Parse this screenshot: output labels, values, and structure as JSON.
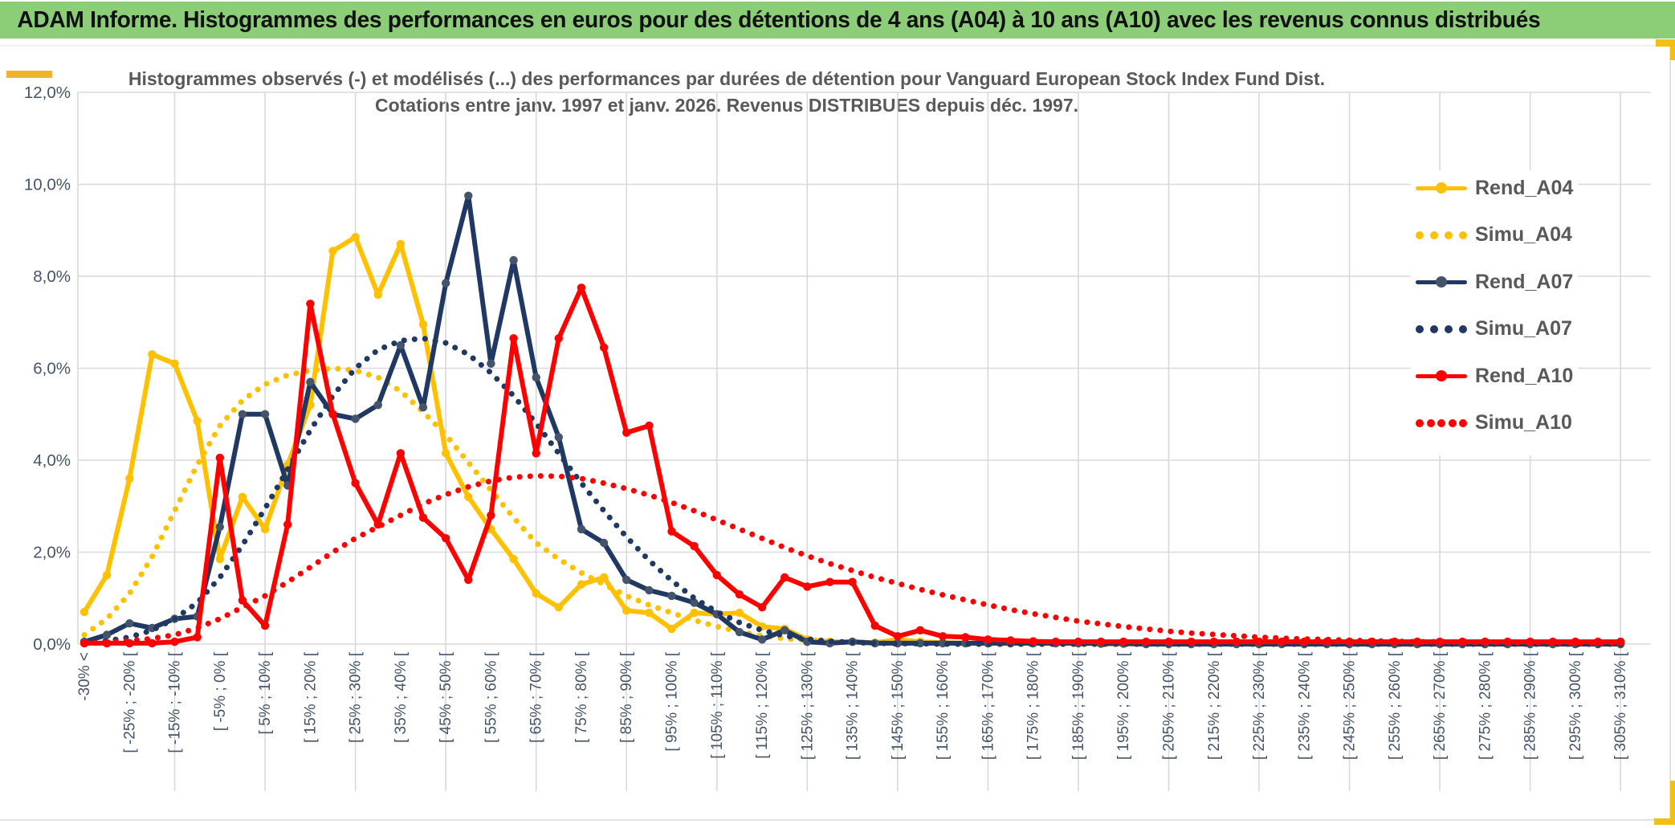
{
  "banner": {
    "text": "ADAM Informe. Histogrammes des performances en euros pour des détentions de 4 ans (A04) à 10 ans (A10) avec les revenus connus distribués"
  },
  "chart": {
    "title_line1": "Histogrammes observés (-) et modélisés (...) des performances par durées de détention pour Vanguard European Stock Index Fund Dist.",
    "title_line2": "Cotations entre janv. 1997 et janv. 2026. Revenus DISTRIBUES depuis déc. 1997.",
    "y_ticks": [
      "12,0%",
      "10,0%",
      "8,0%",
      "6,0%",
      "4,0%",
      "2,0%",
      "0,0%"
    ]
  },
  "chart_data": {
    "type": "line",
    "title": "Histogrammes observés (-) et modélisés (...) des performances par durées de détention pour Vanguard European Stock Index Fund Dist.",
    "subtitle": "Cotations entre janv. 1997 et janv. 2026. Revenus DISTRIBUES depuis déc. 1997.",
    "ylabel": "",
    "xlabel": "",
    "ylim": [
      0,
      12
    ],
    "grid": true,
    "legend_position": "right",
    "bin_width_pct": 5,
    "n_bins": 69,
    "x_labels_on_even_bins": [
      "-30% <",
      "[ -25% ; -20% [",
      "[ -15% ; -10% [",
      "[ -5% ; 0% [",
      "[ 5% ; 10% [",
      "[ 15% ; 20% [",
      "[ 25% ; 30% [",
      "[ 35% ; 40% [",
      "[ 45% ; 50% [",
      "[ 55% ; 60% [",
      "[ 65% ; 70% [",
      "[ 75% ; 80% [",
      "[ 85% ; 90% [",
      "[ 95% ; 100% [",
      "[ 105% ; 110% [",
      "[ 115% ; 120% [",
      "[ 125% ; 130% [",
      "[ 135% ; 140% [",
      "[ 145% ; 150% [",
      "[ 155% ; 160% [",
      "[ 165% ; 170% [",
      "[ 175% ; 180% [",
      "[ 185% ; 190% [",
      "[ 195% ; 200% [",
      "[ 205% ; 210% [",
      "[ 215% ; 220% [",
      "[ 225% ; 230% [",
      "[ 235% ; 240% [",
      "[ 245% ; 250% [",
      "[ 255% ; 260% [",
      "[ 265% ; 270% [",
      "[ 275% ; 280% [",
      "[ 285% ; 290% [",
      "[ 295% ; 300% [",
      "[ 305% ; 310% ["
    ],
    "series": [
      {
        "name": "Rend_A04",
        "color": "#FFC000",
        "marker_color": "#FFC000",
        "style": "solid",
        "values": [
          0.7,
          1.5,
          3.6,
          6.3,
          6.1,
          4.85,
          1.85,
          3.2,
          2.5,
          3.9,
          5.2,
          8.55,
          8.85,
          7.6,
          8.7,
          6.95,
          4.15,
          3.2,
          2.5,
          1.85,
          1.1,
          0.8,
          1.3,
          1.45,
          0.73,
          0.68,
          0.33,
          0.68,
          0.65,
          0.68,
          0.38,
          0.33,
          0.1,
          0.05,
          0.05,
          0.03,
          0.1,
          0.05,
          0.03,
          0.02,
          0.02,
          0.02,
          0.02,
          0.02,
          0.02,
          0.01,
          0.01,
          0,
          0,
          0,
          0,
          0,
          0,
          0,
          0,
          0,
          0,
          0,
          0,
          0,
          0,
          0,
          0,
          0,
          0,
          0,
          0,
          0,
          0
        ]
      },
      {
        "name": "Simu_A04",
        "color": "#FFC000",
        "style": "dotted",
        "values": [
          0.2,
          0.55,
          1.1,
          1.9,
          2.9,
          3.9,
          4.75,
          5.3,
          5.65,
          5.85,
          5.95,
          6.0,
          5.95,
          5.8,
          5.5,
          5.05,
          4.55,
          3.95,
          3.35,
          2.75,
          2.2,
          1.85,
          1.55,
          1.3,
          1.05,
          0.85,
          0.68,
          0.52,
          0.38,
          0.27,
          0.18,
          0.12,
          0.08,
          0.05,
          0.03,
          0.02,
          0.02,
          0.01,
          0.01,
          0.01,
          0,
          0,
          0,
          0,
          0,
          0,
          0,
          0,
          0,
          0,
          0,
          0,
          0,
          0,
          0,
          0,
          0,
          0,
          0,
          0,
          0,
          0,
          0,
          0,
          0,
          0,
          0,
          0,
          0
        ]
      },
      {
        "name": "Rend_A07",
        "color": "#1F3864",
        "marker_color": "#44546A",
        "style": "solid",
        "values": [
          0.05,
          0.2,
          0.45,
          0.35,
          0.55,
          0.6,
          2.55,
          5.0,
          5.0,
          3.45,
          5.7,
          5.0,
          4.9,
          5.2,
          6.5,
          5.15,
          7.85,
          9.75,
          6.1,
          8.35,
          5.8,
          4.5,
          2.5,
          2.2,
          1.4,
          1.17,
          1.05,
          0.9,
          0.65,
          0.26,
          0.1,
          0.3,
          0.05,
          0.02,
          0.05,
          0.02,
          0.02,
          0.02,
          0.02,
          0.02,
          0.02,
          0.02,
          0.02,
          0.02,
          0.02,
          0.01,
          0.01,
          0,
          0,
          0,
          0,
          0,
          0,
          0,
          0,
          0,
          0,
          0,
          0,
          0,
          0,
          0,
          0,
          0,
          0,
          0,
          0,
          0,
          0
        ]
      },
      {
        "name": "Simu_A07",
        "color": "#1F3864",
        "style": "dotted",
        "values": [
          0.02,
          0.07,
          0.15,
          0.3,
          0.55,
          0.9,
          1.45,
          2.15,
          2.95,
          3.8,
          4.65,
          5.4,
          6.0,
          6.4,
          6.6,
          6.65,
          6.55,
          6.3,
          5.9,
          5.4,
          4.8,
          4.15,
          3.5,
          2.9,
          2.33,
          1.82,
          1.38,
          1.0,
          0.7,
          0.47,
          0.3,
          0.18,
          0.11,
          0.06,
          0.04,
          0.02,
          0.01,
          0.01,
          0,
          0,
          0,
          0,
          0,
          0,
          0,
          0,
          0,
          0,
          0,
          0,
          0,
          0,
          0,
          0,
          0,
          0,
          0,
          0,
          0,
          0,
          0,
          0,
          0,
          0,
          0,
          0,
          0,
          0,
          0
        ]
      },
      {
        "name": "Rend_A10",
        "color": "#FF0000",
        "marker_color": "#FF0000",
        "style": "solid",
        "values": [
          0.02,
          0.02,
          0.02,
          0.02,
          0.05,
          0.15,
          4.05,
          0.95,
          0.4,
          2.6,
          7.4,
          5.0,
          3.5,
          2.6,
          4.15,
          2.75,
          2.3,
          1.4,
          2.8,
          6.65,
          4.15,
          6.65,
          7.75,
          6.45,
          4.6,
          4.75,
          2.45,
          2.13,
          1.5,
          1.08,
          0.8,
          1.45,
          1.25,
          1.35,
          1.35,
          0.4,
          0.17,
          0.3,
          0.17,
          0.15,
          0.1,
          0.08,
          0.06,
          0.05,
          0.05,
          0.05,
          0.05,
          0.05,
          0.05,
          0.05,
          0.05,
          0.05,
          0.05,
          0.05,
          0.05,
          0.05,
          0.05,
          0.05,
          0.05,
          0.05,
          0.05,
          0.05,
          0.05,
          0.05,
          0.05,
          0.05,
          0.05,
          0.05,
          0.05
        ]
      },
      {
        "name": "Simu_A10",
        "color": "#FF0000",
        "style": "dotted",
        "values": [
          0.02,
          0.04,
          0.07,
          0.12,
          0.2,
          0.35,
          0.55,
          0.8,
          1.05,
          1.35,
          1.67,
          2.0,
          2.3,
          2.55,
          2.8,
          3.05,
          3.25,
          3.42,
          3.55,
          3.63,
          3.66,
          3.65,
          3.6,
          3.5,
          3.38,
          3.24,
          3.08,
          2.9,
          2.7,
          2.5,
          2.3,
          2.1,
          1.92,
          1.75,
          1.6,
          1.45,
          1.32,
          1.19,
          1.07,
          0.96,
          0.85,
          0.75,
          0.66,
          0.58,
          0.5,
          0.44,
          0.38,
          0.33,
          0.28,
          0.24,
          0.21,
          0.18,
          0.15,
          0.13,
          0.11,
          0.1,
          0.08,
          0.07,
          0.06,
          0.05,
          0.05,
          0.04,
          0.04,
          0.03,
          0.03,
          0.03,
          0.02,
          0.02,
          0.02
        ]
      }
    ]
  }
}
